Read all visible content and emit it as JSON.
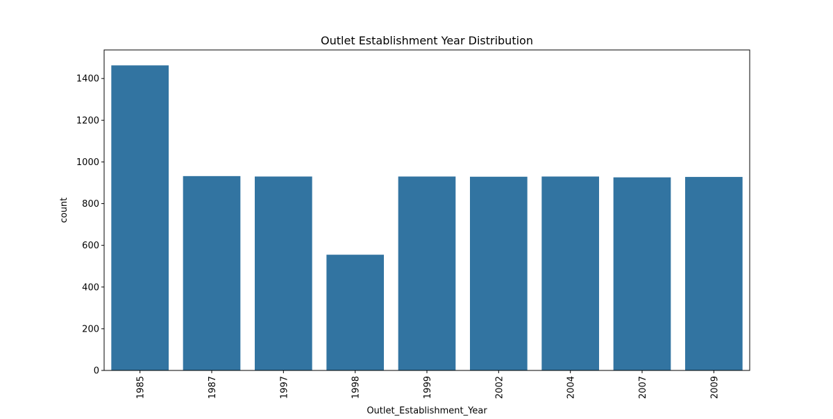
{
  "chart_data": {
    "type": "bar",
    "title": "Outlet Establishment Year Distribution",
    "xlabel": "Outlet_Establishment_Year",
    "ylabel": "count",
    "categories": [
      "1985",
      "1987",
      "1997",
      "1998",
      "1999",
      "2002",
      "2004",
      "2007",
      "2009"
    ],
    "values": [
      1463,
      932,
      930,
      555,
      930,
      929,
      930,
      926,
      928
    ],
    "ylim": [
      0,
      1537
    ],
    "yticks": [
      0,
      200,
      400,
      600,
      800,
      1000,
      1200,
      1400
    ],
    "bar_color": "#3274a1",
    "grid": false,
    "legend": "none"
  }
}
